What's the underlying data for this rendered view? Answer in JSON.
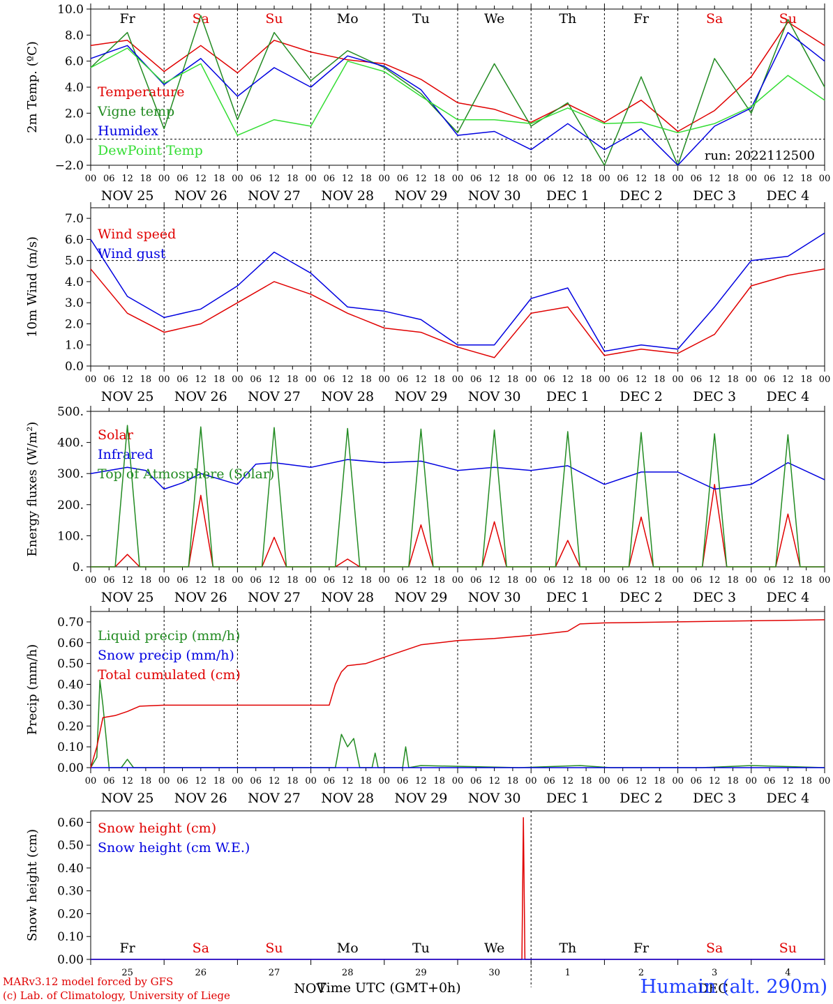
{
  "meta": {
    "run_label": "run: 2022112500",
    "credit_line1": "MARv3.12 model forced by GFS",
    "credit_line2": "(c) Lab. of Climatology, University of Liege",
    "station_label": "Humain (alt. 290m)",
    "x_axis_title": "Time UTC (GMT+0h)",
    "bottom_month_left": "NOV",
    "bottom_month_right": "DEC"
  },
  "time_axis": {
    "hour_ticks": [
      "00",
      "06",
      "12",
      "18"
    ],
    "end_tick": "00",
    "days": [
      "NOV 25",
      "NOV 26",
      "NOV 27",
      "NOV 28",
      "NOV 29",
      "NOV 30",
      "DEC  1",
      "DEC  2",
      "DEC  3",
      "DEC  4"
    ],
    "weekdays": [
      "Fr",
      "Sa",
      "Su",
      "Mo",
      "Tu",
      "We",
      "Th",
      "Fr",
      "Sa",
      "Su"
    ],
    "day_numbers": [
      "25",
      "26",
      "27",
      "28",
      "29",
      "30",
      "1",
      "2",
      "3",
      "4"
    ],
    "weekend_color": "#e00000"
  },
  "chart_data": [
    {
      "type": "line",
      "ylabel": "2m Temp. (ºC)",
      "ylim": [
        -2,
        10
      ],
      "yticks": [
        -2,
        0,
        2,
        4,
        6,
        8,
        10
      ],
      "ytick_labels": [
        "−2.0",
        "0.0",
        "2.0",
        "4.0",
        "6.0",
        "8.0",
        "10.0"
      ],
      "ref_line": 0,
      "x_unit": "hours since NOV 25 00 UTC",
      "series": [
        {
          "name": "Temperature",
          "color": "#e00000",
          "x": [
            0,
            12,
            24,
            36,
            48,
            60,
            72,
            84,
            96,
            108,
            120,
            132,
            144,
            156,
            168,
            180,
            192,
            204,
            216,
            228,
            240
          ],
          "values": [
            7.2,
            7.6,
            5.2,
            7.2,
            5.1,
            7.6,
            6.7,
            6.1,
            5.8,
            4.6,
            2.8,
            2.3,
            1.3,
            2.7,
            1.3,
            3.0,
            0.6,
            2.2,
            4.8,
            9.0,
            7.2
          ]
        },
        {
          "name": "Vigne temp",
          "color": "#228b22",
          "x": [
            0,
            12,
            24,
            36,
            48,
            60,
            72,
            84,
            96,
            108,
            120,
            132,
            144,
            156,
            168,
            180,
            192,
            204,
            216,
            228,
            240
          ],
          "values": [
            5.5,
            8.2,
            0.8,
            9.5,
            1.5,
            8.2,
            4.5,
            6.8,
            5.5,
            3.5,
            0.5,
            5.8,
            1.0,
            2.8,
            -2.0,
            4.8,
            -2.0,
            6.2,
            2.0,
            9.2,
            4.0
          ]
        },
        {
          "name": "Humidex",
          "color": "#0000e0",
          "x": [
            0,
            12,
            24,
            36,
            48,
            60,
            72,
            84,
            96,
            108,
            120,
            132,
            144,
            156,
            168,
            180,
            192,
            204,
            216,
            228,
            240
          ],
          "values": [
            6.2,
            7.2,
            4.2,
            6.2,
            3.3,
            5.5,
            4.0,
            6.4,
            5.6,
            3.8,
            0.3,
            0.6,
            -0.8,
            1.2,
            -0.8,
            0.8,
            -2.0,
            1.0,
            2.4,
            8.2,
            6.0
          ]
        },
        {
          "name": "DewPoint Temp",
          "color": "#33dd33",
          "x": [
            0,
            12,
            24,
            36,
            48,
            60,
            72,
            84,
            96,
            108,
            120,
            132,
            144,
            156,
            168,
            180,
            192,
            204,
            216,
            228,
            240
          ],
          "values": [
            5.5,
            7.0,
            4.3,
            5.8,
            0.3,
            1.5,
            1.0,
            6.0,
            5.2,
            3.3,
            1.5,
            1.5,
            1.2,
            2.4,
            1.2,
            1.3,
            0.5,
            1.2,
            2.5,
            4.9,
            3.0
          ]
        }
      ]
    },
    {
      "type": "line",
      "ylabel": "10m Wind (m/s)",
      "ylim": [
        0,
        7.5
      ],
      "yticks": [
        0,
        1,
        2,
        3,
        4,
        5,
        6,
        7
      ],
      "ytick_labels": [
        "0.0",
        "1.0",
        "2.0",
        "3.0",
        "4.0",
        "5.0",
        "6.0",
        "7.0"
      ],
      "ref_line": 5,
      "x_unit": "hours since NOV 25 00 UTC",
      "series": [
        {
          "name": "Wind speed",
          "color": "#e00000",
          "x": [
            0,
            12,
            24,
            36,
            48,
            60,
            72,
            84,
            96,
            108,
            120,
            132,
            144,
            156,
            168,
            180,
            192,
            204,
            216,
            228,
            240
          ],
          "values": [
            4.6,
            2.5,
            1.6,
            2.0,
            3.0,
            4.0,
            3.4,
            2.5,
            1.8,
            1.6,
            0.9,
            0.4,
            2.5,
            2.8,
            0.5,
            0.8,
            0.6,
            1.5,
            3.8,
            4.3,
            4.6
          ]
        },
        {
          "name": "Wind gust",
          "color": "#0000e0",
          "x": [
            0,
            12,
            24,
            36,
            48,
            60,
            72,
            84,
            96,
            108,
            120,
            132,
            144,
            156,
            168,
            180,
            192,
            204,
            216,
            228,
            240
          ],
          "values": [
            6.0,
            3.3,
            2.3,
            2.7,
            3.8,
            5.4,
            4.4,
            2.8,
            2.6,
            2.2,
            1.0,
            1.0,
            3.2,
            3.7,
            0.7,
            1.0,
            0.8,
            2.8,
            5.0,
            5.2,
            6.3
          ]
        }
      ]
    },
    {
      "type": "line",
      "ylabel": "Energy fluxes (W/m²)",
      "ylim": [
        0,
        500
      ],
      "yticks": [
        0,
        100,
        200,
        300,
        400,
        500
      ],
      "ytick_labels": [
        "0.",
        "100.",
        "200.",
        "300.",
        "400.",
        "500."
      ],
      "x_unit": "hours since NOV 25 00 UTC",
      "series": [
        {
          "name": "Solar",
          "color": "#e00000",
          "x": [
            0,
            8,
            12,
            16,
            32,
            36,
            40,
            56,
            60,
            64,
            80,
            84,
            88,
            104,
            108,
            112,
            128,
            132,
            136,
            152,
            156,
            160,
            176,
            180,
            184,
            200,
            204,
            208,
            224,
            228,
            232,
            240
          ],
          "values": [
            0,
            0,
            40,
            0,
            0,
            230,
            0,
            0,
            95,
            0,
            0,
            25,
            0,
            0,
            135,
            0,
            0,
            145,
            0,
            0,
            85,
            0,
            0,
            160,
            0,
            0,
            265,
            0,
            0,
            170,
            0,
            0
          ]
        },
        {
          "name": "Infrared",
          "color": "#0000e0",
          "x": [
            0,
            12,
            18,
            24,
            30,
            36,
            48,
            54,
            60,
            72,
            84,
            96,
            108,
            120,
            132,
            144,
            156,
            168,
            180,
            192,
            204,
            216,
            228,
            240
          ],
          "values": [
            300,
            320,
            310,
            250,
            270,
            300,
            265,
            330,
            335,
            320,
            345,
            335,
            340,
            310,
            320,
            310,
            325,
            265,
            305,
            305,
            250,
            265,
            335,
            280
          ]
        },
        {
          "name": "Top of Atmosphere (Solar)",
          "color": "#228b22",
          "x": [
            0,
            8,
            12,
            16,
            32,
            36,
            40,
            56,
            60,
            64,
            80,
            84,
            88,
            104,
            108,
            112,
            128,
            132,
            136,
            152,
            156,
            160,
            176,
            180,
            184,
            200,
            204,
            208,
            224,
            228,
            232,
            240
          ],
          "values": [
            0,
            0,
            455,
            0,
            0,
            450,
            0,
            0,
            448,
            0,
            0,
            445,
            0,
            0,
            443,
            0,
            0,
            440,
            0,
            0,
            435,
            0,
            0,
            432,
            0,
            0,
            428,
            0,
            0,
            425,
            0,
            0
          ]
        }
      ]
    },
    {
      "type": "line",
      "ylabel": "Precip (mm/h)",
      "ylim": [
        0,
        0.75
      ],
      "yticks": [
        0,
        0.1,
        0.2,
        0.3,
        0.4,
        0.5,
        0.6,
        0.7
      ],
      "ytick_labels": [
        "0.00",
        "0.10",
        "0.20",
        "0.30",
        "0.40",
        "0.50",
        "0.60",
        "0.70"
      ],
      "x_unit": "hours since NOV 25 00 UTC",
      "series": [
        {
          "name": "Liquid precip (mm/h)",
          "color": "#228b22",
          "x": [
            0,
            2,
            3,
            4,
            6,
            10,
            12,
            14,
            72,
            80,
            82,
            84,
            86,
            88,
            92,
            93,
            94,
            102,
            103,
            104,
            108,
            140,
            160,
            170,
            200,
            216,
            240
          ],
          "values": [
            0,
            0.05,
            0.42,
            0.3,
            0,
            0,
            0.04,
            0,
            0,
            0,
            0.16,
            0.1,
            0.14,
            0,
            0,
            0.07,
            0,
            0,
            0.1,
            0,
            0.01,
            0,
            0.01,
            0,
            0,
            0.01,
            0
          ]
        },
        {
          "name": "Snow precip (mm/h)",
          "color": "#0000e0",
          "x": [
            0,
            240
          ],
          "values": [
            0,
            0
          ]
        },
        {
          "name": "Total cumulated (cm)",
          "color": "#e00000",
          "x": [
            0,
            2,
            4,
            8,
            12,
            16,
            24,
            48,
            72,
            78,
            80,
            82,
            84,
            90,
            96,
            100,
            108,
            120,
            132,
            144,
            156,
            160,
            168,
            192,
            216,
            240
          ],
          "values": [
            0,
            0.1,
            0.24,
            0.25,
            0.27,
            0.295,
            0.3,
            0.3,
            0.3,
            0.3,
            0.4,
            0.46,
            0.49,
            0.5,
            0.53,
            0.55,
            0.59,
            0.61,
            0.62,
            0.635,
            0.655,
            0.69,
            0.695,
            0.7,
            0.705,
            0.71
          ]
        }
      ]
    },
    {
      "type": "line",
      "ylabel": "Snow height (cm)",
      "ylim": [
        0,
        0.65
      ],
      "yticks": [
        0,
        0.1,
        0.2,
        0.3,
        0.4,
        0.5,
        0.6
      ],
      "ytick_labels": [
        "0.00",
        "0.10",
        "0.20",
        "0.30",
        "0.40",
        "0.50",
        "0.60"
      ],
      "x_unit": "hours since NOV 25 00 UTC",
      "series": [
        {
          "name": "Snow height (cm)",
          "color": "#e00000",
          "x": [
            0,
            141,
            141.5,
            142,
            240
          ],
          "values": [
            0,
            0,
            0.62,
            0,
            0
          ]
        },
        {
          "name": "Snow height (cm W.E.)",
          "color": "#0000e0",
          "x": [
            0,
            240
          ],
          "values": [
            0,
            0
          ]
        }
      ]
    }
  ]
}
